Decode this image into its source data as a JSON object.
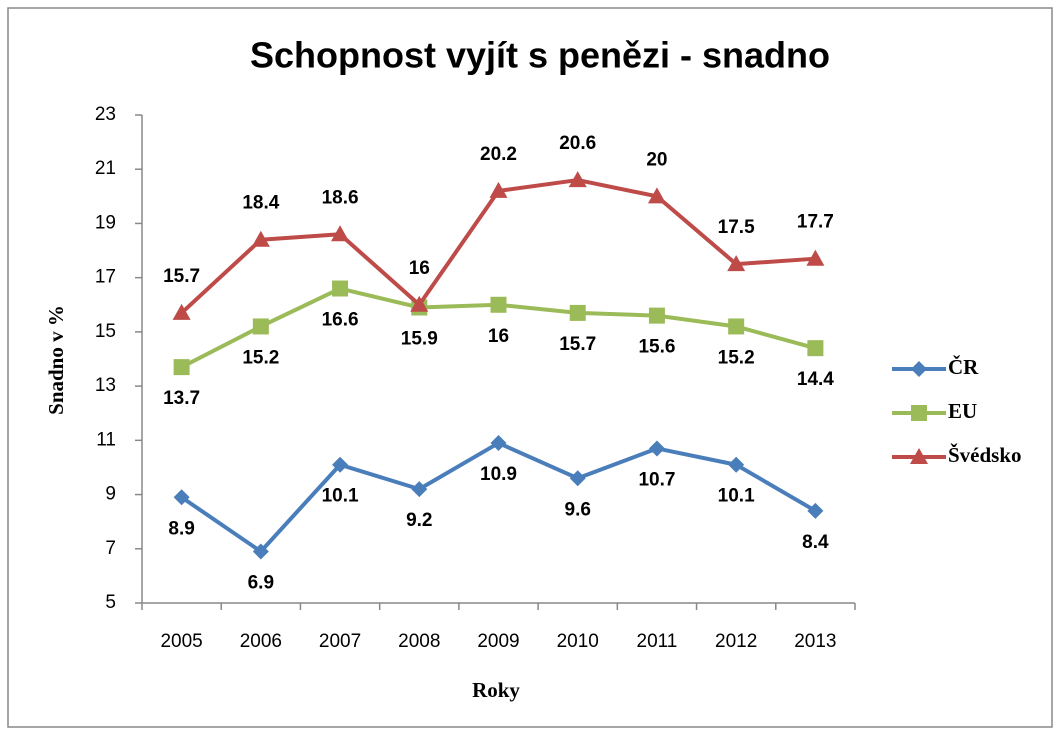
{
  "chart_data": {
    "type": "line",
    "title": "Schopnost vyjít s penězi - snadno",
    "x_label": "Roky",
    "y_label": "Snadno v %",
    "categories": [
      "2005",
      "2006",
      "2007",
      "2008",
      "2009",
      "2010",
      "2011",
      "2012",
      "2013"
    ],
    "series": [
      {
        "name": "ČR",
        "color": "#4a7ebb",
        "values": [
          8.9,
          6.9,
          10.1,
          9.2,
          10.9,
          9.6,
          10.7,
          10.1,
          8.4
        ]
      },
      {
        "name": "EU",
        "color": "#9bbb59",
        "values": [
          13.7,
          15.2,
          16.6,
          15.9,
          16,
          15.7,
          15.6,
          15.2,
          14.4
        ]
      },
      {
        "name": "Švédsko",
        "color": "#be4b48",
        "values": [
          15.7,
          18.4,
          18.6,
          16,
          20.2,
          20.6,
          20,
          17.5,
          17.7
        ]
      }
    ],
    "ylim": [
      5,
      23
    ],
    "yticks": [
      5,
      7,
      9,
      11,
      13,
      15,
      17,
      19,
      21,
      23
    ],
    "grid": false,
    "legend": "right"
  }
}
